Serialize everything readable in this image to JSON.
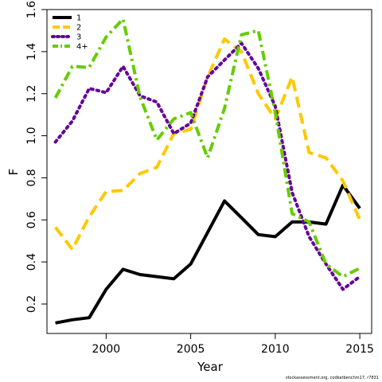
{
  "chart_data": {
    "type": "line",
    "xlabel": "Year",
    "ylabel": "F",
    "xlim": [
      1996.5,
      2015.7
    ],
    "ylim": [
      0.06,
      1.6
    ],
    "x_ticks": [
      2000,
      2005,
      2010,
      2015
    ],
    "y_ticks": [
      0.2,
      0.4,
      0.6,
      0.8,
      1.0,
      1.2,
      1.4,
      1.6
    ],
    "legend_position": "top-left",
    "grid": false,
    "x": [
      1997,
      1998,
      1999,
      2000,
      2001,
      2002,
      2003,
      2004,
      2005,
      2006,
      2007,
      2008,
      2009,
      2010,
      2011,
      2012,
      2013,
      2014,
      2015
    ],
    "series": [
      {
        "name": "1",
        "color": "#000000",
        "dash": "solid",
        "values": [
          0.11,
          0.125,
          0.135,
          0.27,
          0.365,
          0.34,
          0.33,
          0.32,
          0.39,
          0.54,
          0.69,
          0.61,
          0.53,
          0.52,
          0.59,
          0.59,
          0.58,
          0.765,
          0.655
        ]
      },
      {
        "name": "2",
        "color": "#FFC800",
        "dash": "long-dash",
        "values": [
          0.565,
          0.46,
          0.615,
          0.735,
          0.74,
          0.82,
          0.85,
          1.01,
          1.03,
          1.28,
          1.46,
          1.4,
          1.2,
          1.08,
          1.28,
          0.92,
          0.895,
          0.785,
          0.6
        ]
      },
      {
        "name": "3",
        "color": "#660099",
        "dash": "dotted",
        "values": [
          0.97,
          1.07,
          1.225,
          1.205,
          1.33,
          1.19,
          1.16,
          1.01,
          1.06,
          1.28,
          1.36,
          1.44,
          1.32,
          1.14,
          0.73,
          0.52,
          0.39,
          0.27,
          0.33
        ]
      },
      {
        "name": "4+",
        "color": "#66CC00",
        "dash": "dash-dot",
        "values": [
          1.18,
          1.33,
          1.325,
          1.47,
          1.555,
          1.185,
          0.98,
          1.08,
          1.11,
          0.895,
          1.13,
          1.48,
          1.5,
          1.11,
          0.63,
          0.59,
          0.39,
          0.33,
          0.37
        ]
      }
    ]
  },
  "footnote": "stockassessment.org, codkatbenchm17, r7831"
}
